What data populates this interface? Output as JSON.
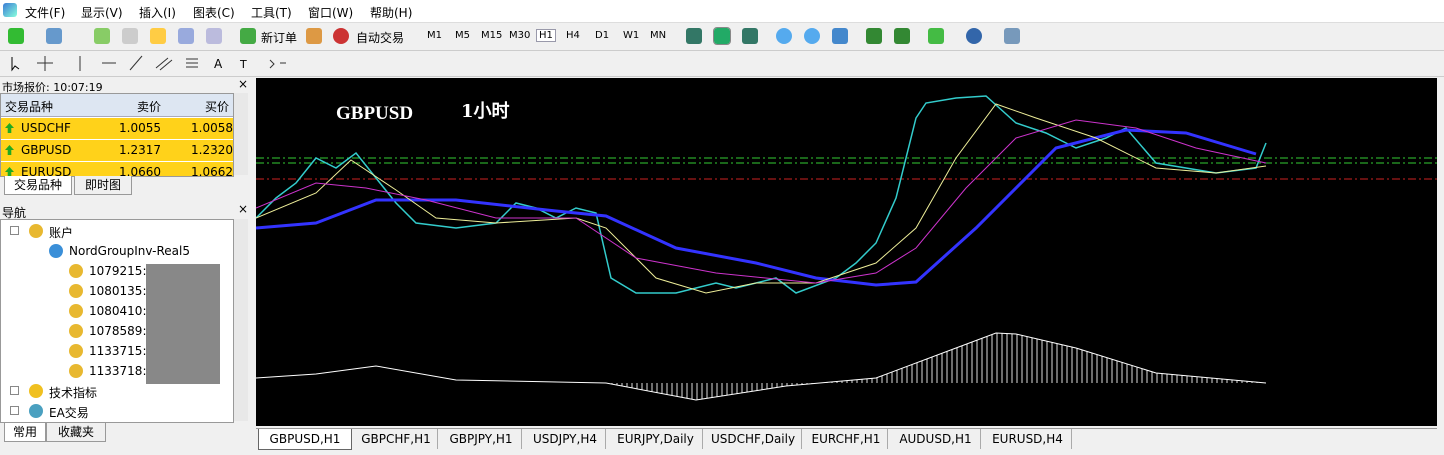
{
  "menu": [
    "文件(F)",
    "显示(V)",
    "插入(I)",
    "图表(C)",
    "工具(T)",
    "窗口(W)",
    "帮助(H)"
  ],
  "toolbar": {
    "new_order": "新订单",
    "auto_trading": "自动交易",
    "timeframes": [
      "M1",
      "M5",
      "M15",
      "M30",
      "H1",
      "H4",
      "D1",
      "W1",
      "MN"
    ]
  },
  "market_watch": {
    "title": "市场报价: 10:07:19",
    "columns": [
      "交易品种",
      "卖价",
      "买价"
    ],
    "rows": [
      [
        "USDCHF",
        "1.0055",
        "1.0058"
      ],
      [
        "GBPUSD",
        "1.2317",
        "1.2320"
      ],
      [
        "EURUSD",
        "1.0660",
        "1.0662"
      ]
    ],
    "tabs": [
      "交易品种",
      "即时图"
    ]
  },
  "navigator": {
    "title": "导航",
    "accounts": "账户",
    "server": "NordGroupInv-Real5",
    "account_ids": [
      "1079215:",
      "1080135:",
      "1080410:",
      "1078589:",
      "1133715:",
      "1133718:"
    ],
    "indicators": "技术指标",
    "experts": "EA交易",
    "tabs": [
      "常用",
      "收藏夹"
    ]
  },
  "chart": {
    "symbol": "GBPUSD",
    "timeframe": "1小时"
  },
  "chart_tabs": [
    "GBPUSD,H1",
    "GBPCHF,H1",
    "GBPJPY,H1",
    "USDJPY,H4",
    "EURJPY,Daily",
    "USDCHF,Daily",
    "EURCHF,H1",
    "AUDUSD,H1",
    "EURUSD,H4"
  ]
}
